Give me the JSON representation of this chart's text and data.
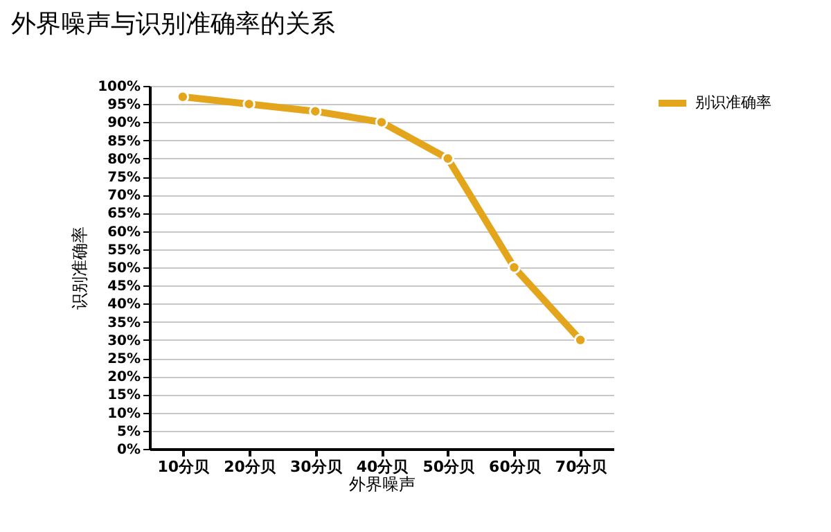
{
  "chart_data": {
    "type": "line",
    "title": "外界噪声与识别准确率的关系",
    "xlabel": "外界噪声",
    "ylabel": "识别准确率",
    "categories": [
      "10分贝",
      "20分贝",
      "30分贝",
      "40分贝",
      "50分贝",
      "60分贝",
      "70分贝"
    ],
    "series": [
      {
        "name": "别识准确率",
        "color": "#e3a51c",
        "values": [
          97,
          95,
          93,
          90,
          80,
          50,
          30
        ]
      }
    ],
    "ylim": [
      0,
      100
    ],
    "yticks": [
      {
        "value": 0,
        "label": "0%"
      },
      {
        "value": 5,
        "label": "5%"
      },
      {
        "value": 10,
        "label": "10%"
      },
      {
        "value": 15,
        "label": "15%"
      },
      {
        "value": 20,
        "label": "20%"
      },
      {
        "value": 25,
        "label": "25%"
      },
      {
        "value": 30,
        "label": "30%"
      },
      {
        "value": 35,
        "label": "35%"
      },
      {
        "value": 40,
        "label": "40%"
      },
      {
        "value": 45,
        "label": "45%"
      },
      {
        "value": 50,
        "label": "50%"
      },
      {
        "value": 55,
        "label": "55%"
      },
      {
        "value": 60,
        "label": "60%"
      },
      {
        "value": 65,
        "label": "65%"
      },
      {
        "value": 70,
        "label": "70%"
      },
      {
        "value": 75,
        "label": "75%"
      },
      {
        "value": 80,
        "label": "80%"
      },
      {
        "value": 85,
        "label": "85%"
      },
      {
        "value": 90,
        "label": "90%"
      },
      {
        "value": 95,
        "label": "95%"
      },
      {
        "value": 100,
        "label": "100%"
      }
    ],
    "grid": "y",
    "legend": "right",
    "marker": "circle",
    "line_style": "solid"
  }
}
